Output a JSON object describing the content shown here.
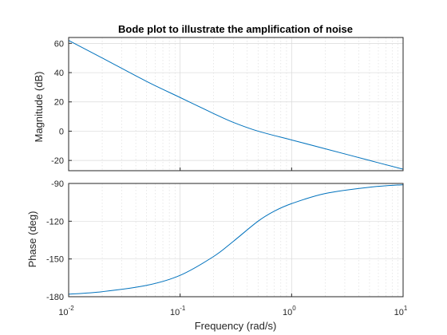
{
  "chart_data": {
    "type": "line",
    "title": "Bode plot to illustrate the amplification of noise",
    "xlabel": "Frequency  (rad/s)",
    "xscale": "log",
    "xlim": [
      0.01,
      10
    ],
    "xticks": [
      {
        "value": 0.01,
        "base": "10",
        "exp": "-2"
      },
      {
        "value": 0.1,
        "base": "10",
        "exp": "-1"
      },
      {
        "value": 1,
        "base": "10",
        "exp": "0"
      },
      {
        "value": 10,
        "base": "10",
        "exp": "1"
      }
    ],
    "grid": true,
    "line_color": "#0072BD",
    "subplots": [
      {
        "ylabel": "Magnitude (dB)",
        "ylim": [
          -27,
          64
        ],
        "yticks": [
          "-20",
          "0",
          "20",
          "40",
          "60"
        ],
        "x": [
          0.01,
          0.02,
          0.05,
          0.1,
          0.2,
          0.3,
          0.5,
          1,
          2,
          5,
          10
        ],
        "y": [
          62,
          50,
          34,
          23,
          12,
          6,
          0,
          -6,
          -12,
          -20,
          -26
        ]
      },
      {
        "ylabel": "Phase (deg)",
        "ylim": [
          -180,
          -90
        ],
        "yticks": [
          "-180",
          "-150",
          "-120",
          "-90"
        ],
        "x": [
          0.01,
          0.02,
          0.05,
          0.1,
          0.2,
          0.3,
          0.5,
          0.7,
          1,
          2,
          5,
          10
        ],
        "y": [
          -178,
          -176,
          -171,
          -163,
          -148,
          -136,
          -120,
          -112,
          -106,
          -98,
          -93,
          -91
        ]
      }
    ]
  }
}
